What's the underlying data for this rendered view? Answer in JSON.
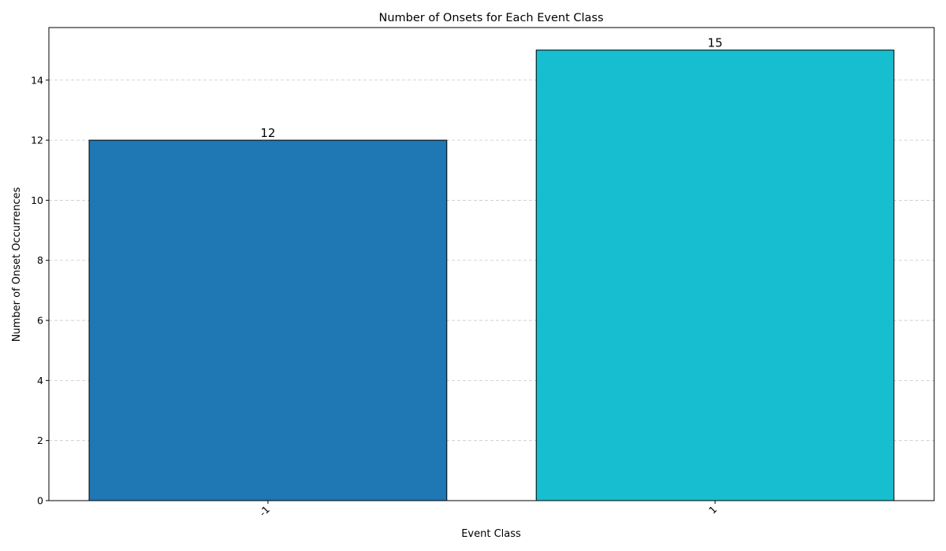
{
  "chart_data": {
    "type": "bar",
    "title": "Number of Onsets for Each Event Class",
    "xlabel": "Event Class",
    "ylabel": "Number of Onset Occurrences",
    "categories": [
      "-1",
      "1"
    ],
    "values": [
      12,
      15
    ],
    "data_labels": [
      "12",
      "15"
    ],
    "bar_colors": [
      "#1f77b4",
      "#17becf"
    ],
    "bar_edge_color": "#000000",
    "ylim": [
      0,
      15.75
    ],
    "yticks": [
      0,
      2,
      4,
      6,
      8,
      10,
      12,
      14
    ],
    "ytick_labels": [
      "0",
      "2",
      "4",
      "6",
      "8",
      "10",
      "12",
      "14"
    ],
    "grid": {
      "axis": "y",
      "style": "dashed",
      "color": "#b0b0b0"
    },
    "xtick_rotation": 45
  }
}
